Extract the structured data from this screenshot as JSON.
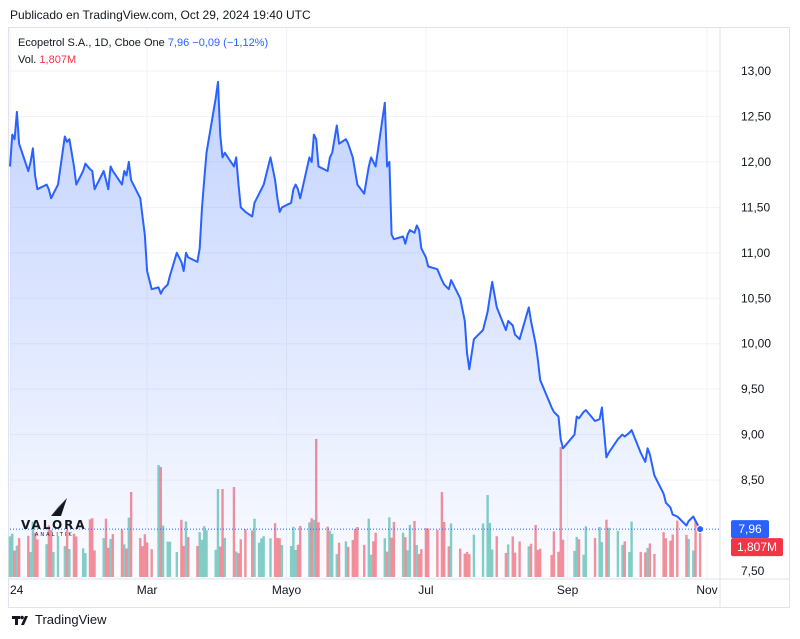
{
  "published": "Publicado en TradingView.com, Oct 29, 2024 19:40 UTC",
  "legend": {
    "symbol": "Ecopetrol S.A., 1D, Cboe One",
    "price": "7,96",
    "change": "−0,09 (−1,12%)",
    "vol_label": "Vol.",
    "vol_value": "1,807M"
  },
  "footer": {
    "brand": "TradingView",
    "logo_icon": "tradingview-logo-icon"
  },
  "watermark": {
    "text": "VALORA",
    "subtext": "ANALITIK"
  },
  "colors": {
    "line": "#2962ff",
    "up": "#22ab94",
    "down": "#f23645",
    "grid": "#f0f3fa",
    "text": "#131722"
  },
  "chart_data": {
    "type": "area",
    "price_scale_labels": [
      "13,00",
      "12,50",
      "12,00",
      "11,50",
      "11,00",
      "10,50",
      "10,00",
      "9,50",
      "9,00",
      "8,50",
      "7,50"
    ],
    "ylim": [
      7.5,
      13.0
    ],
    "x_ticks": [
      {
        "label": "24",
        "date": "2024-01-01"
      },
      {
        "label": "Mar",
        "date": "2024-03-01"
      },
      {
        "label": "Mayo",
        "date": "2024-05-01"
      },
      {
        "label": "Jul",
        "date": "2024-07-01"
      },
      {
        "label": "Sep",
        "date": "2024-09-01"
      },
      {
        "label": "Nov",
        "date": "2024-11-01"
      }
    ],
    "xlim": [
      "2024-01-01",
      "2024-11-01"
    ],
    "last_price_label": "7,96",
    "last_volume_label": "1,807M",
    "series": [
      {
        "type": "line",
        "points": [
          [
            "2024-01-01",
            11.95
          ],
          [
            "2024-01-02",
            12.3
          ],
          [
            "2024-01-03",
            12.25
          ],
          [
            "2024-01-04",
            12.55
          ],
          [
            "2024-01-05",
            12.2
          ],
          [
            "2024-01-08",
            11.9
          ],
          [
            "2024-01-09",
            12.0
          ],
          [
            "2024-01-10",
            12.15
          ],
          [
            "2024-01-11",
            11.85
          ],
          [
            "2024-01-12",
            11.7
          ],
          [
            "2024-01-15",
            11.75
          ],
          [
            "2024-01-16",
            11.7
          ],
          [
            "2024-01-17",
            11.6
          ],
          [
            "2024-01-18",
            11.65
          ],
          [
            "2024-01-19",
            11.75
          ],
          [
            "2024-01-22",
            12.28
          ],
          [
            "2024-01-23",
            12.22
          ],
          [
            "2024-01-24",
            12.25
          ],
          [
            "2024-01-25",
            11.95
          ],
          [
            "2024-01-26",
            11.75
          ],
          [
            "2024-01-29",
            11.9
          ],
          [
            "2024-01-30",
            11.98
          ],
          [
            "2024-01-31",
            11.92
          ],
          [
            "2024-02-01",
            11.9
          ],
          [
            "2024-02-02",
            11.7
          ],
          [
            "2024-02-05",
            11.9
          ],
          [
            "2024-02-06",
            11.8
          ],
          [
            "2024-02-07",
            11.7
          ],
          [
            "2024-02-08",
            11.95
          ],
          [
            "2024-02-09",
            11.9
          ],
          [
            "2024-02-12",
            11.75
          ],
          [
            "2024-02-13",
            11.9
          ],
          [
            "2024-02-14",
            11.85
          ],
          [
            "2024-02-15",
            12.0
          ],
          [
            "2024-02-16",
            11.8
          ],
          [
            "2024-02-19",
            11.6
          ],
          [
            "2024-02-20",
            11.4
          ],
          [
            "2024-02-21",
            11.2
          ],
          [
            "2024-02-22",
            10.8
          ],
          [
            "2024-02-23",
            10.6
          ],
          [
            "2024-02-26",
            10.62
          ],
          [
            "2024-02-27",
            10.55
          ],
          [
            "2024-02-28",
            10.6
          ],
          [
            "2024-02-29",
            10.65
          ],
          [
            "2024-03-01",
            10.75
          ],
          [
            "2024-03-04",
            11.0
          ],
          [
            "2024-03-05",
            10.9
          ],
          [
            "2024-03-06",
            10.8
          ],
          [
            "2024-03-07",
            11.0
          ],
          [
            "2024-03-08",
            10.95
          ],
          [
            "2024-03-11",
            10.9
          ],
          [
            "2024-03-12",
            11.05
          ],
          [
            "2024-03-13",
            11.5
          ],
          [
            "2024-03-14",
            11.8
          ],
          [
            "2024-03-15",
            12.1
          ],
          [
            "2024-03-18",
            12.7
          ],
          [
            "2024-03-19",
            12.88
          ],
          [
            "2024-03-20",
            12.3
          ],
          [
            "2024-03-21",
            12.05
          ],
          [
            "2024-03-22",
            12.1
          ],
          [
            "2024-03-25",
            11.95
          ],
          [
            "2024-03-26",
            12.05
          ],
          [
            "2024-03-27",
            11.75
          ],
          [
            "2024-03-28",
            11.5
          ],
          [
            "2024-03-29",
            11.45
          ],
          [
            "2024-04-01",
            11.4
          ],
          [
            "2024-04-02",
            11.55
          ],
          [
            "2024-04-03",
            11.65
          ],
          [
            "2024-04-04",
            11.7
          ],
          [
            "2024-04-05",
            11.75
          ],
          [
            "2024-04-08",
            12.05
          ],
          [
            "2024-04-09",
            11.8
          ],
          [
            "2024-04-10",
            11.6
          ],
          [
            "2024-04-11",
            11.45
          ],
          [
            "2024-04-12",
            11.5
          ],
          [
            "2024-04-15",
            11.55
          ],
          [
            "2024-04-16",
            11.7
          ],
          [
            "2024-04-17",
            11.75
          ],
          [
            "2024-04-18",
            11.7
          ],
          [
            "2024-04-19",
            11.6
          ],
          [
            "2024-04-22",
            12.05
          ],
          [
            "2024-04-23",
            12.0
          ],
          [
            "2024-04-24",
            12.3
          ],
          [
            "2024-04-25",
            12.25
          ],
          [
            "2024-04-26",
            11.95
          ],
          [
            "2024-04-29",
            11.9
          ],
          [
            "2024-04-30",
            12.05
          ],
          [
            "2024-05-01",
            12.1
          ],
          [
            "2024-05-02",
            12.4
          ],
          [
            "2024-05-03",
            12.2
          ],
          [
            "2024-05-06",
            12.25
          ],
          [
            "2024-05-07",
            12.2
          ],
          [
            "2024-05-08",
            12.05
          ],
          [
            "2024-05-09",
            11.9
          ],
          [
            "2024-05-10",
            11.75
          ],
          [
            "2024-05-13",
            11.65
          ],
          [
            "2024-05-14",
            11.95
          ],
          [
            "2024-05-15",
            12.05
          ],
          [
            "2024-05-16",
            12.0
          ],
          [
            "2024-05-17",
            11.95
          ],
          [
            "2024-05-20",
            12.65
          ],
          [
            "2024-05-21",
            11.95
          ],
          [
            "2024-05-22",
            12.0
          ],
          [
            "2024-05-23",
            11.2
          ],
          [
            "2024-05-24",
            11.15
          ],
          [
            "2024-05-27",
            11.18
          ],
          [
            "2024-05-28",
            11.1
          ],
          [
            "2024-05-29",
            11.2
          ],
          [
            "2024-05-30",
            11.25
          ],
          [
            "2024-05-31",
            11.22
          ]
        ]
      }
    ],
    "volume_bars": "see price series dates; one bar per trading day"
  }
}
